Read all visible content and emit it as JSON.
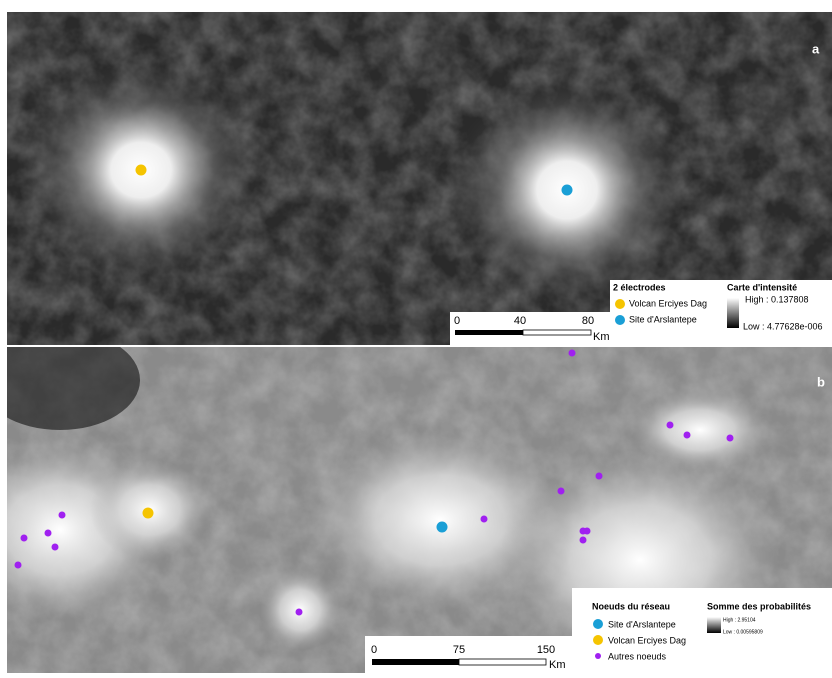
{
  "panel_a": {
    "label": "a",
    "legend": {
      "title": "2 électrodes",
      "items": [
        "Volcan Erciyes Dag",
        "Site d'Arslantepe"
      ]
    },
    "intensity": {
      "title": "Carte d'intensité",
      "high": "High : 0.137808",
      "low": "Low : 4.77628e-006"
    },
    "scale": {
      "ticks": [
        "0",
        "40",
        "80"
      ],
      "unit": "Km"
    }
  },
  "panel_b": {
    "label": "b",
    "legend": {
      "title": "Noeuds du réseau",
      "items": [
        "Site d'Arslantepe",
        "Volcan Erciyes Dag",
        "Autres noeuds"
      ]
    },
    "intensity": {
      "title": "Somme des probabilités",
      "high": "High : 2.95104",
      "low": "Low : 0.00595809"
    },
    "scale": {
      "ticks": [
        "0",
        "75",
        "150"
      ],
      "unit": "Km"
    }
  }
}
